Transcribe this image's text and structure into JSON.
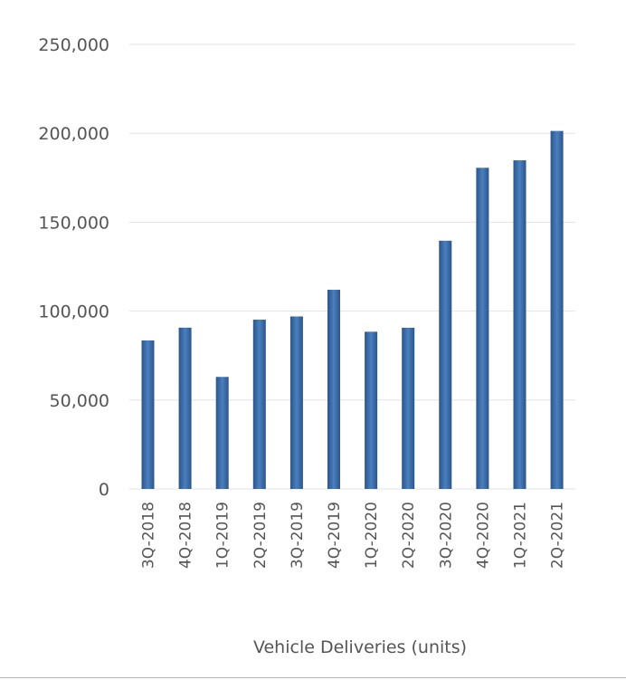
{
  "chart_data": {
    "type": "bar",
    "title": "",
    "xlabel": "Vehicle Deliveries (units)",
    "ylabel": "",
    "ylim": [
      0,
      250000
    ],
    "yticks": [
      0,
      50000,
      100000,
      150000,
      200000,
      250000
    ],
    "ytick_labels": [
      "0",
      "50,000",
      "100,000",
      "150,000",
      "200,000",
      "250,000"
    ],
    "grid": true,
    "bar_color": "#3a6aa8",
    "categories": [
      "3Q-2018",
      "4Q-2018",
      "1Q-2019",
      "2Q-2019",
      "3Q-2019",
      "4Q-2019",
      "1Q-2020",
      "2Q-2020",
      "3Q-2020",
      "4Q-2020",
      "1Q-2021",
      "2Q-2021"
    ],
    "values": [
      83500,
      90700,
      63000,
      95200,
      97000,
      112000,
      88400,
      90650,
      139600,
      180600,
      184800,
      201300
    ]
  }
}
